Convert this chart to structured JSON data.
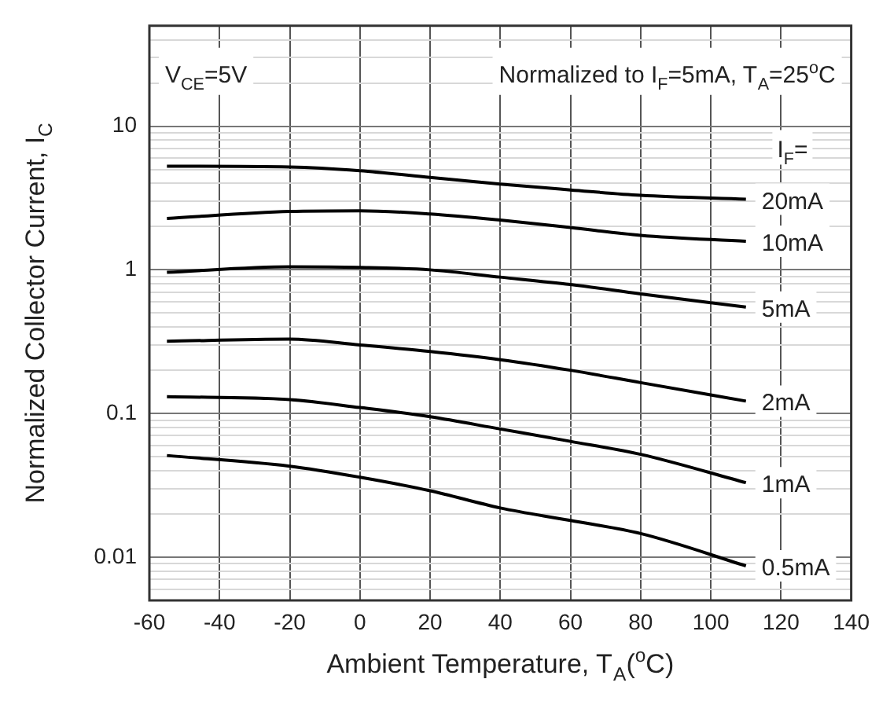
{
  "chart_data": {
    "type": "line",
    "xlabel": "Ambient Temperature, T$_{A}$($^{o}$C)",
    "ylabel": "Normalized Collector Current, I$_{C}$",
    "legend_title": "I$_{F}$=",
    "annotations": [
      "V$_{CE}$=5V",
      "Normalized to I$_{F}$=5mA, T$_{A}$=25$^{o}$C"
    ],
    "x": [
      -55,
      -20,
      0,
      20,
      40,
      60,
      80,
      110
    ],
    "series": [
      {
        "name": "20mA",
        "color": "#000000",
        "values": [
          5.27,
          5.2,
          4.9,
          4.4,
          3.95,
          3.6,
          3.3,
          3.1
        ]
      },
      {
        "name": "10mA",
        "color": "#000000",
        "values": [
          2.28,
          2.55,
          2.58,
          2.45,
          2.22,
          1.97,
          1.74,
          1.58
        ]
      },
      {
        "name": "5mA",
        "color": "#000000",
        "values": [
          0.96,
          1.05,
          1.04,
          1.0,
          0.89,
          0.79,
          0.68,
          0.55
        ]
      },
      {
        "name": "2mA",
        "color": "#000000",
        "values": [
          0.318,
          0.33,
          0.3,
          0.27,
          0.237,
          0.2,
          0.164,
          0.122
        ]
      },
      {
        "name": "1mA",
        "color": "#000000",
        "values": [
          0.131,
          0.125,
          0.11,
          0.095,
          0.078,
          0.064,
          0.052,
          0.033
        ]
      },
      {
        "name": "0.5mA",
        "color": "#000000",
        "values": [
          0.051,
          0.043,
          0.036,
          0.029,
          0.022,
          0.018,
          0.0146,
          0.0087
        ]
      }
    ],
    "log": "y",
    "grid": true,
    "line_style": "solid",
    "marker": "none",
    "xlim": [
      -60,
      140
    ],
    "xticks": [
      -60,
      -40,
      -20,
      0,
      20,
      40,
      60,
      80,
      100,
      120,
      140
    ],
    "ylim": [
      0.005,
      50
    ],
    "yticks": [
      {
        "value": 0.005,
        "label": null
      },
      {
        "value": 0.006,
        "label": null
      },
      {
        "value": 0.007,
        "label": null
      },
      {
        "value": 0.008,
        "label": null
      },
      {
        "value": 0.009,
        "label": null
      },
      0.01,
      {
        "value": 0.02,
        "label": null
      },
      {
        "value": 0.03,
        "label": null
      },
      {
        "value": 0.04,
        "label": null
      },
      {
        "value": 0.05,
        "label": null
      },
      {
        "value": 0.06,
        "label": null
      },
      {
        "value": 0.07,
        "label": null
      },
      {
        "value": 0.08,
        "label": null
      },
      {
        "value": 0.09,
        "label": null
      },
      0.1,
      {
        "value": 0.2,
        "label": null
      },
      {
        "value": 0.3,
        "label": null
      },
      {
        "value": 0.4,
        "label": null
      },
      {
        "value": 0.5,
        "label": null
      },
      {
        "value": 0.6,
        "label": null
      },
      {
        "value": 0.7,
        "label": null
      },
      {
        "value": 0.8,
        "label": null
      },
      {
        "value": 0.9,
        "label": null
      },
      1,
      {
        "value": 2,
        "label": null
      },
      {
        "value": 3,
        "label": null
      },
      {
        "value": 4,
        "label": null
      },
      {
        "value": 5,
        "label": null
      },
      {
        "value": 6,
        "label": null
      },
      {
        "value": 7,
        "label": null
      },
      {
        "value": 8,
        "label": null
      },
      {
        "value": 9,
        "label": null
      },
      10,
      {
        "value": 20,
        "label": null
      },
      {
        "value": 30,
        "label": null
      },
      {
        "value": 40,
        "label": null
      },
      {
        "value": 50,
        "label": null
      }
    ]
  }
}
